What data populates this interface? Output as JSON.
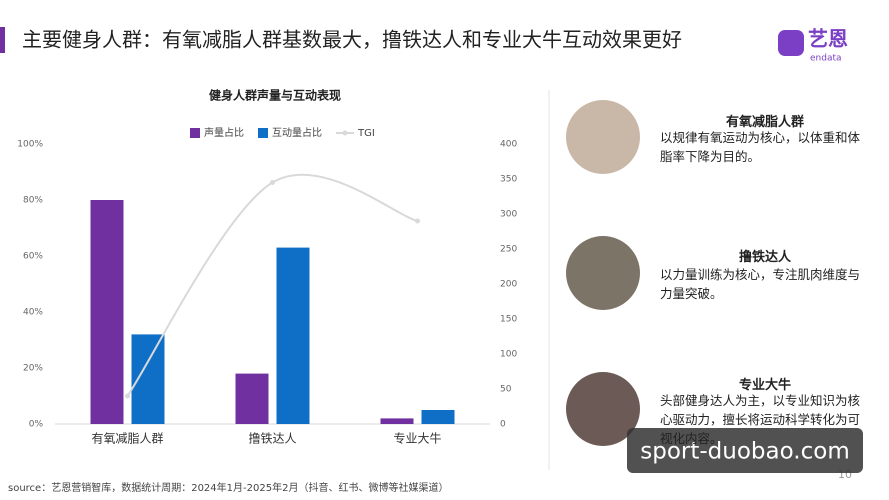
{
  "header": {
    "title": "主要健身人群：有氧减脂人群基数最大，撸铁达人和专业大牛互动效果更好",
    "logo": "艺恩",
    "logo_sub": "endata"
  },
  "chart_data": {
    "type": "bar",
    "title": "健身人群声量与互动表现",
    "categories": [
      "有氧减脂人群",
      "撸铁达人",
      "专业大牛"
    ],
    "series": [
      {
        "name": "声量占比",
        "color": "#7030a0",
        "values": [
          80,
          18,
          2
        ]
      },
      {
        "name": "互动量占比",
        "color": "#0f6fc6",
        "values": [
          32,
          63,
          5
        ]
      },
      {
        "name": "TGI",
        "color": "#d9d9d9",
        "axis": "y2",
        "type": "line",
        "values": [
          40,
          345,
          290
        ]
      }
    ],
    "ylim": [
      0,
      100
    ],
    "yticks": [
      {
        "value": 0,
        "label": "0%"
      },
      {
        "value": 20,
        "label": "20%"
      },
      {
        "value": 40,
        "label": "40%"
      },
      {
        "value": 60,
        "label": "60%"
      },
      {
        "value": 80,
        "label": "80%"
      },
      {
        "value": 100,
        "label": "100%"
      }
    ],
    "y2lim": [
      0,
      400
    ],
    "y2ticks": [
      0,
      50,
      100,
      150,
      200,
      250,
      300,
      350,
      400
    ]
  },
  "cards": [
    {
      "title": "有氧减脂人群",
      "text": "以规律有氧运动为核心，以体重和体脂率下降为目的。"
    },
    {
      "title": "撸铁达人",
      "text": "以力量训练为核心，专注肌肉维度与力量突破。"
    },
    {
      "title": "专业大牛",
      "text": "头部健身达人为主，以专业知识为核心驱动力，擅长将运动科学转化为可视化内容。"
    }
  ],
  "source": "source：艺恩营销智库，数据统计周期：2024年1月-2025年2月（抖音、红书、微博等社媒渠道）",
  "page_number": "10",
  "watermark": "sport-duobao.com"
}
